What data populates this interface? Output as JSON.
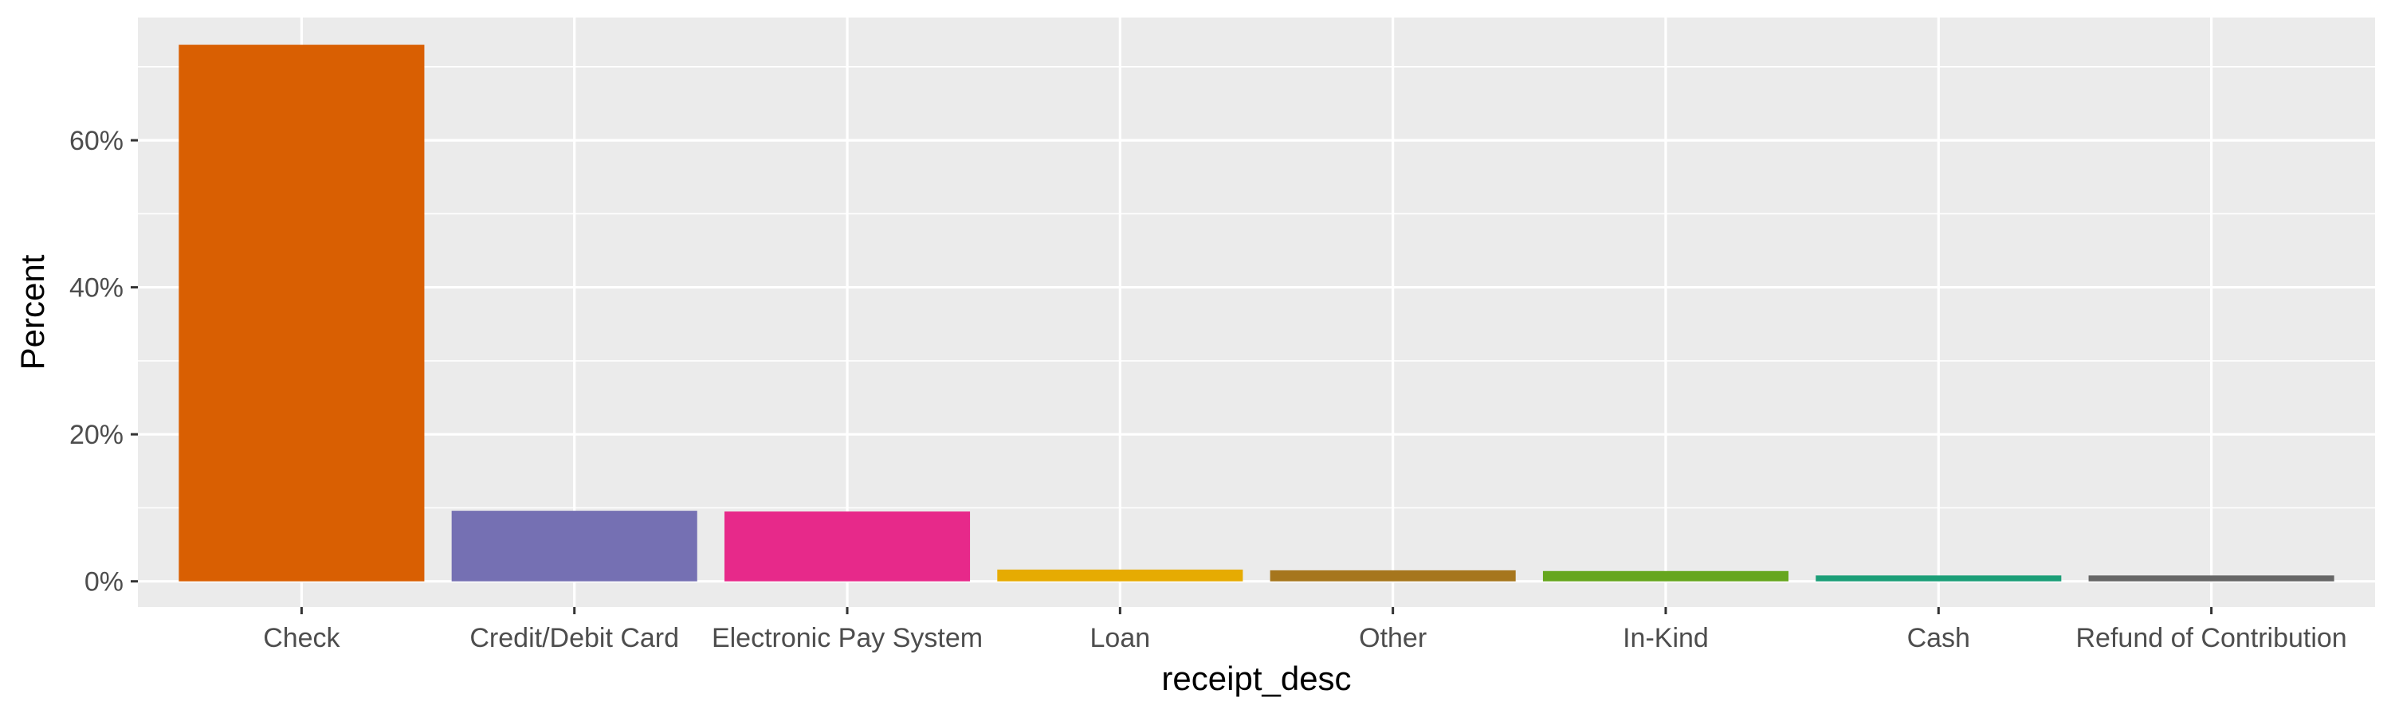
{
  "chart_data": {
    "type": "bar",
    "title": "",
    "xlabel": "receipt_desc",
    "ylabel": "Percent",
    "categories": [
      "Check",
      "Credit/Debit Card",
      "Electronic Pay System",
      "Loan",
      "Other",
      "In-Kind",
      "Cash",
      "Refund of Contribution"
    ],
    "values": [
      73.0,
      9.6,
      9.5,
      1.6,
      1.5,
      1.4,
      0.8,
      0.8
    ],
    "colors": [
      "#D95F02",
      "#7570B3",
      "#E7298A",
      "#E6AB02",
      "#A6761D",
      "#66A61E",
      "#1B9E77",
      "#666666"
    ],
    "ylim": [
      -3.5,
      76.7
    ],
    "yticks": [
      0,
      20,
      40,
      60
    ],
    "ytick_labels": [
      "0%",
      "20%",
      "40%",
      "60%"
    ],
    "grid": true,
    "legend": "none",
    "panel_background": "#EBEBEB"
  }
}
